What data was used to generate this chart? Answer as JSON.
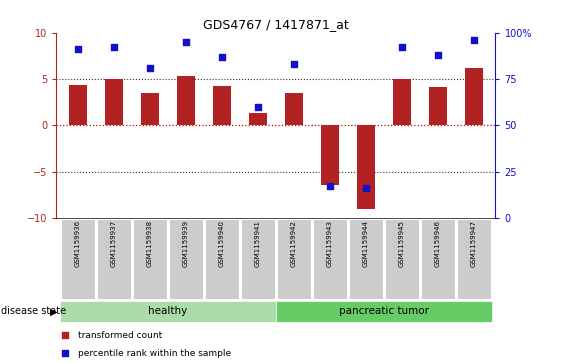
{
  "title": "GDS4767 / 1417871_at",
  "samples": [
    "GSM1159936",
    "GSM1159937",
    "GSM1159938",
    "GSM1159939",
    "GSM1159940",
    "GSM1159941",
    "GSM1159942",
    "GSM1159943",
    "GSM1159944",
    "GSM1159945",
    "GSM1159946",
    "GSM1159947"
  ],
  "bar_values": [
    4.4,
    5.0,
    3.5,
    5.3,
    4.2,
    1.3,
    3.5,
    -6.5,
    -9.0,
    5.0,
    4.1,
    6.2
  ],
  "scatter_values_pct": [
    91,
    92,
    81,
    95,
    87,
    60,
    83,
    17,
    16,
    92,
    88,
    96
  ],
  "bar_color": "#b22222",
  "scatter_color": "#1111cc",
  "ylim_left": [
    -10,
    10
  ],
  "yticks_left": [
    -10,
    -5,
    0,
    5,
    10
  ],
  "yticks_right_labels": [
    "0",
    "25",
    "50",
    "75",
    "100%"
  ],
  "hline_color": "#cc0000",
  "dot_line_color": "#333333",
  "group1_label": "healthy",
  "group2_label": "pancreatic tumor",
  "group1_color": "#aaddaa",
  "group2_color": "#66cc66",
  "group1_indices": [
    0,
    1,
    2,
    3,
    4,
    5
  ],
  "group2_indices": [
    6,
    7,
    8,
    9,
    10,
    11
  ],
  "disease_state_label": "disease state",
  "legend_bar_label": "transformed count",
  "legend_scatter_label": "percentile rank within the sample",
  "bar_width": 0.5,
  "fig_width": 5.63,
  "fig_height": 3.63,
  "dpi": 100
}
